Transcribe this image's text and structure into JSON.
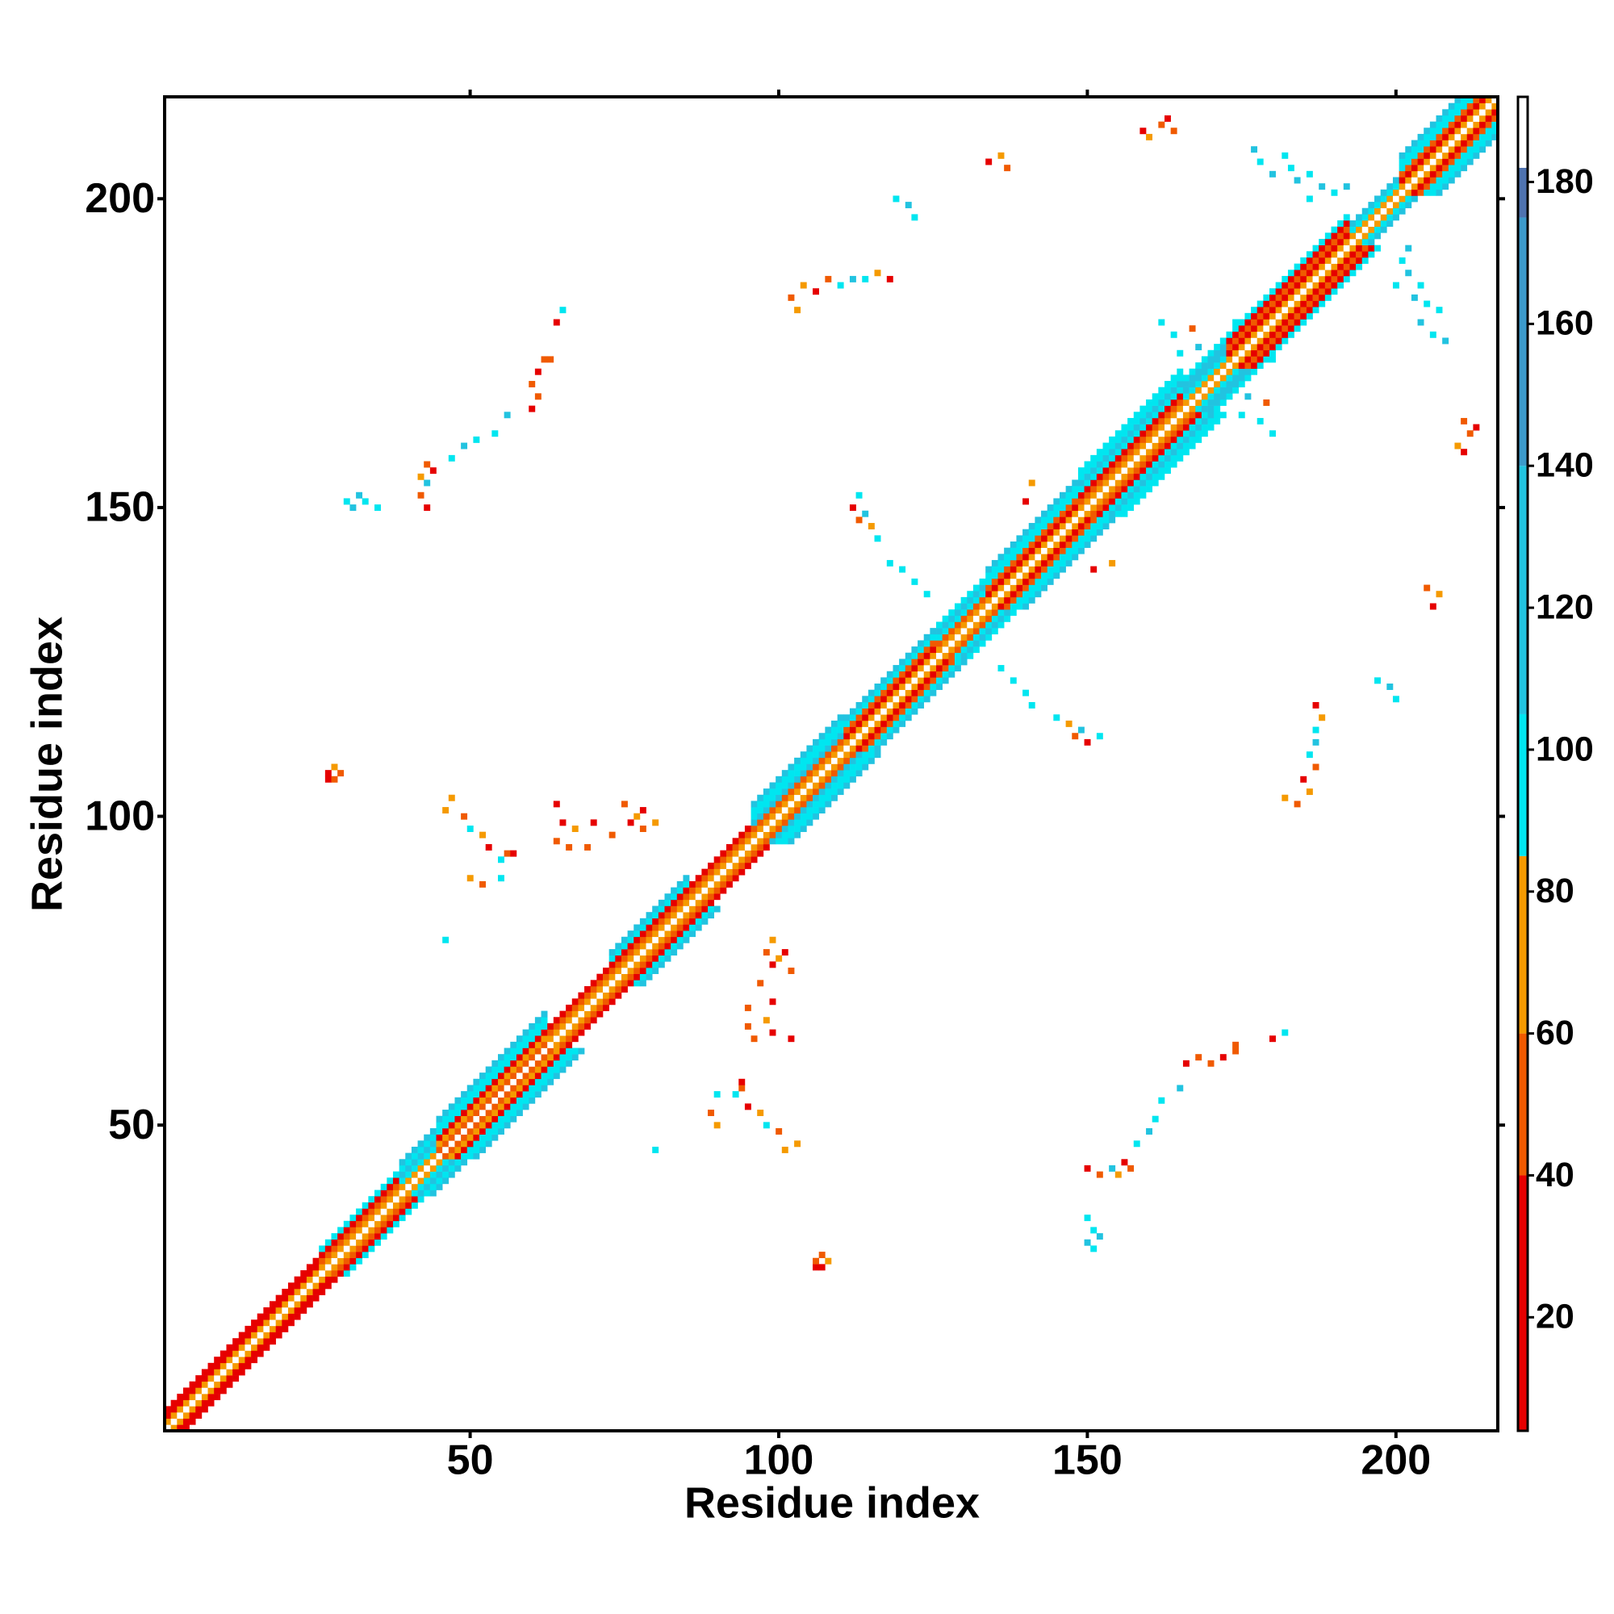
{
  "chart_data": {
    "type": "heatmap",
    "x_label": "Residue index",
    "y_label": "Residue index",
    "xlim": [
      0.5,
      216.5
    ],
    "ylim": [
      0.5,
      216.5
    ],
    "xticks": [
      50,
      100,
      150,
      200
    ],
    "yticks": [
      50,
      100,
      150,
      200
    ],
    "colorbar": {
      "lim": [
        4,
        192
      ],
      "ticks": [
        20,
        40,
        60,
        80,
        100,
        120,
        140,
        160,
        180
      ],
      "stops": [
        {
          "from": 4,
          "to": 40,
          "color": "#e60000"
        },
        {
          "from": 40,
          "to": 60,
          "color": "#f05a00"
        },
        {
          "from": 60,
          "to": 85,
          "color": "#f59a00"
        },
        {
          "from": 85,
          "to": 105,
          "color": "#00e6f0"
        },
        {
          "from": 105,
          "to": 140,
          "color": "#22c3e0"
        },
        {
          "from": 140,
          "to": 175,
          "color": "#3c9acb"
        },
        {
          "from": 175,
          "to": 182,
          "color": "#4f73b0"
        },
        {
          "from": 182,
          "to": 192,
          "color": "#ffffff"
        }
      ]
    },
    "diagonal_band": [
      {
        "from": 1,
        "to": 25,
        "values": [
          190,
          70,
          20,
          20
        ]
      },
      {
        "from": 26,
        "to": 38,
        "values": [
          190,
          70,
          45,
          20,
          95
        ]
      },
      {
        "from": 39,
        "to": 44,
        "values": [
          190,
          70,
          95,
          120,
          95,
          120
        ]
      },
      {
        "from": 45,
        "to": 62,
        "values": [
          190,
          45,
          70,
          20,
          95,
          95,
          120
        ]
      },
      {
        "from": 63,
        "to": 72,
        "values": [
          190,
          70,
          45,
          20
        ]
      },
      {
        "from": 73,
        "to": 85,
        "values": [
          190,
          70,
          45,
          20,
          95,
          120
        ]
      },
      {
        "from": 86,
        "to": 95,
        "values": [
          190,
          70,
          45,
          20
        ]
      },
      {
        "from": 96,
        "to": 110,
        "values": [
          190,
          70,
          45,
          120,
          95,
          95,
          120
        ]
      },
      {
        "from": 111,
        "to": 125,
        "values": [
          190,
          70,
          20,
          45,
          95,
          120
        ]
      },
      {
        "from": 126,
        "to": 133,
        "values": [
          190,
          70,
          45,
          95,
          120,
          95
        ]
      },
      {
        "from": 134,
        "to": 148,
        "values": [
          190,
          70,
          20,
          45,
          95,
          95,
          120
        ]
      },
      {
        "from": 149,
        "to": 165,
        "values": [
          190,
          70,
          45,
          20,
          95,
          120,
          95,
          95
        ]
      },
      {
        "from": 166,
        "to": 172,
        "values": [
          190,
          70,
          95,
          120,
          120,
          95
        ]
      },
      {
        "from": 173,
        "to": 192,
        "values": [
          190,
          70,
          20,
          45,
          20,
          95
        ]
      },
      {
        "from": 193,
        "to": 200,
        "values": [
          190,
          70,
          95,
          120
        ]
      },
      {
        "from": 201,
        "to": 216,
        "values": [
          190,
          70,
          20,
          45,
          95,
          95,
          120
        ]
      }
    ],
    "contacts": [
      [
        27,
        107,
        20
      ],
      [
        28,
        108,
        70
      ],
      [
        29,
        107,
        45
      ],
      [
        27,
        106,
        20
      ],
      [
        28,
        106,
        45
      ],
      [
        30,
        151,
        95
      ],
      [
        31,
        150,
        120
      ],
      [
        33,
        151,
        95
      ],
      [
        35,
        150,
        95
      ],
      [
        32,
        152,
        120
      ],
      [
        42,
        152,
        45
      ],
      [
        43,
        150,
        20
      ],
      [
        43,
        154,
        120
      ],
      [
        44,
        156,
        20
      ],
      [
        42,
        155,
        70
      ],
      [
        43,
        157,
        45
      ],
      [
        47,
        158,
        95
      ],
      [
        49,
        160,
        120
      ],
      [
        51,
        161,
        95
      ],
      [
        54,
        162,
        95
      ],
      [
        56,
        165,
        120
      ],
      [
        60,
        166,
        20
      ],
      [
        60,
        170,
        45
      ],
      [
        61,
        172,
        20
      ],
      [
        62,
        174,
        45
      ],
      [
        63,
        174,
        45
      ],
      [
        61,
        168,
        45
      ],
      [
        64,
        180,
        20
      ],
      [
        65,
        182,
        95
      ],
      [
        46,
        101,
        70
      ],
      [
        47,
        103,
        70
      ],
      [
        49,
        100,
        45
      ],
      [
        50,
        98,
        95
      ],
      [
        52,
        97,
        70
      ],
      [
        53,
        95,
        20
      ],
      [
        55,
        93,
        95
      ],
      [
        56,
        94,
        45
      ],
      [
        57,
        94,
        20
      ],
      [
        50,
        90,
        70
      ],
      [
        52,
        89,
        45
      ],
      [
        55,
        90,
        95
      ],
      [
        64,
        96,
        45
      ],
      [
        65,
        99,
        20
      ],
      [
        67,
        98,
        70
      ],
      [
        70,
        99,
        20
      ],
      [
        73,
        97,
        45
      ],
      [
        76,
        99,
        20
      ],
      [
        77,
        100,
        70
      ],
      [
        78,
        98,
        45
      ],
      [
        80,
        99,
        70
      ],
      [
        75,
        102,
        45
      ],
      [
        64,
        102,
        20
      ],
      [
        78,
        101,
        20
      ],
      [
        66,
        95,
        45
      ],
      [
        69,
        95,
        45
      ],
      [
        46,
        80,
        95
      ],
      [
        134,
        206,
        20
      ],
      [
        136,
        207,
        70
      ],
      [
        137,
        205,
        45
      ],
      [
        159,
        211,
        20
      ],
      [
        160,
        210,
        70
      ],
      [
        162,
        212,
        45
      ],
      [
        164,
        211,
        45
      ],
      [
        163,
        213,
        20
      ],
      [
        177,
        208,
        120
      ],
      [
        178,
        206,
        95
      ],
      [
        180,
        204,
        120
      ],
      [
        182,
        207,
        95
      ],
      [
        184,
        203,
        120
      ],
      [
        186,
        204,
        95
      ],
      [
        183,
        205,
        95
      ],
      [
        188,
        202,
        120
      ],
      [
        190,
        201,
        95
      ],
      [
        192,
        202,
        120
      ],
      [
        186,
        200,
        95
      ],
      [
        102,
        184,
        45
      ],
      [
        104,
        186,
        70
      ],
      [
        106,
        185,
        20
      ],
      [
        108,
        187,
        45
      ],
      [
        110,
        186,
        95
      ],
      [
        112,
        187,
        120
      ],
      [
        114,
        187,
        95
      ],
      [
        116,
        188,
        70
      ],
      [
        118,
        187,
        20
      ],
      [
        103,
        182,
        70
      ],
      [
        119,
        200,
        95
      ],
      [
        121,
        199,
        120
      ],
      [
        122,
        197,
        95
      ],
      [
        141,
        154,
        70
      ],
      [
        140,
        151,
        20
      ],
      [
        112,
        150,
        20
      ],
      [
        113,
        152,
        95
      ],
      [
        114,
        149,
        120
      ],
      [
        115,
        147,
        70
      ],
      [
        116,
        145,
        95
      ],
      [
        118,
        141,
        95
      ],
      [
        120,
        140,
        95
      ],
      [
        122,
        138,
        95
      ],
      [
        124,
        136,
        95
      ],
      [
        113,
        148,
        45
      ],
      [
        165,
        175,
        95
      ],
      [
        168,
        176,
        120
      ],
      [
        170,
        174,
        120
      ],
      [
        164,
        178,
        95
      ],
      [
        162,
        180,
        95
      ],
      [
        174,
        180,
        95
      ],
      [
        167,
        179,
        45
      ]
    ]
  }
}
